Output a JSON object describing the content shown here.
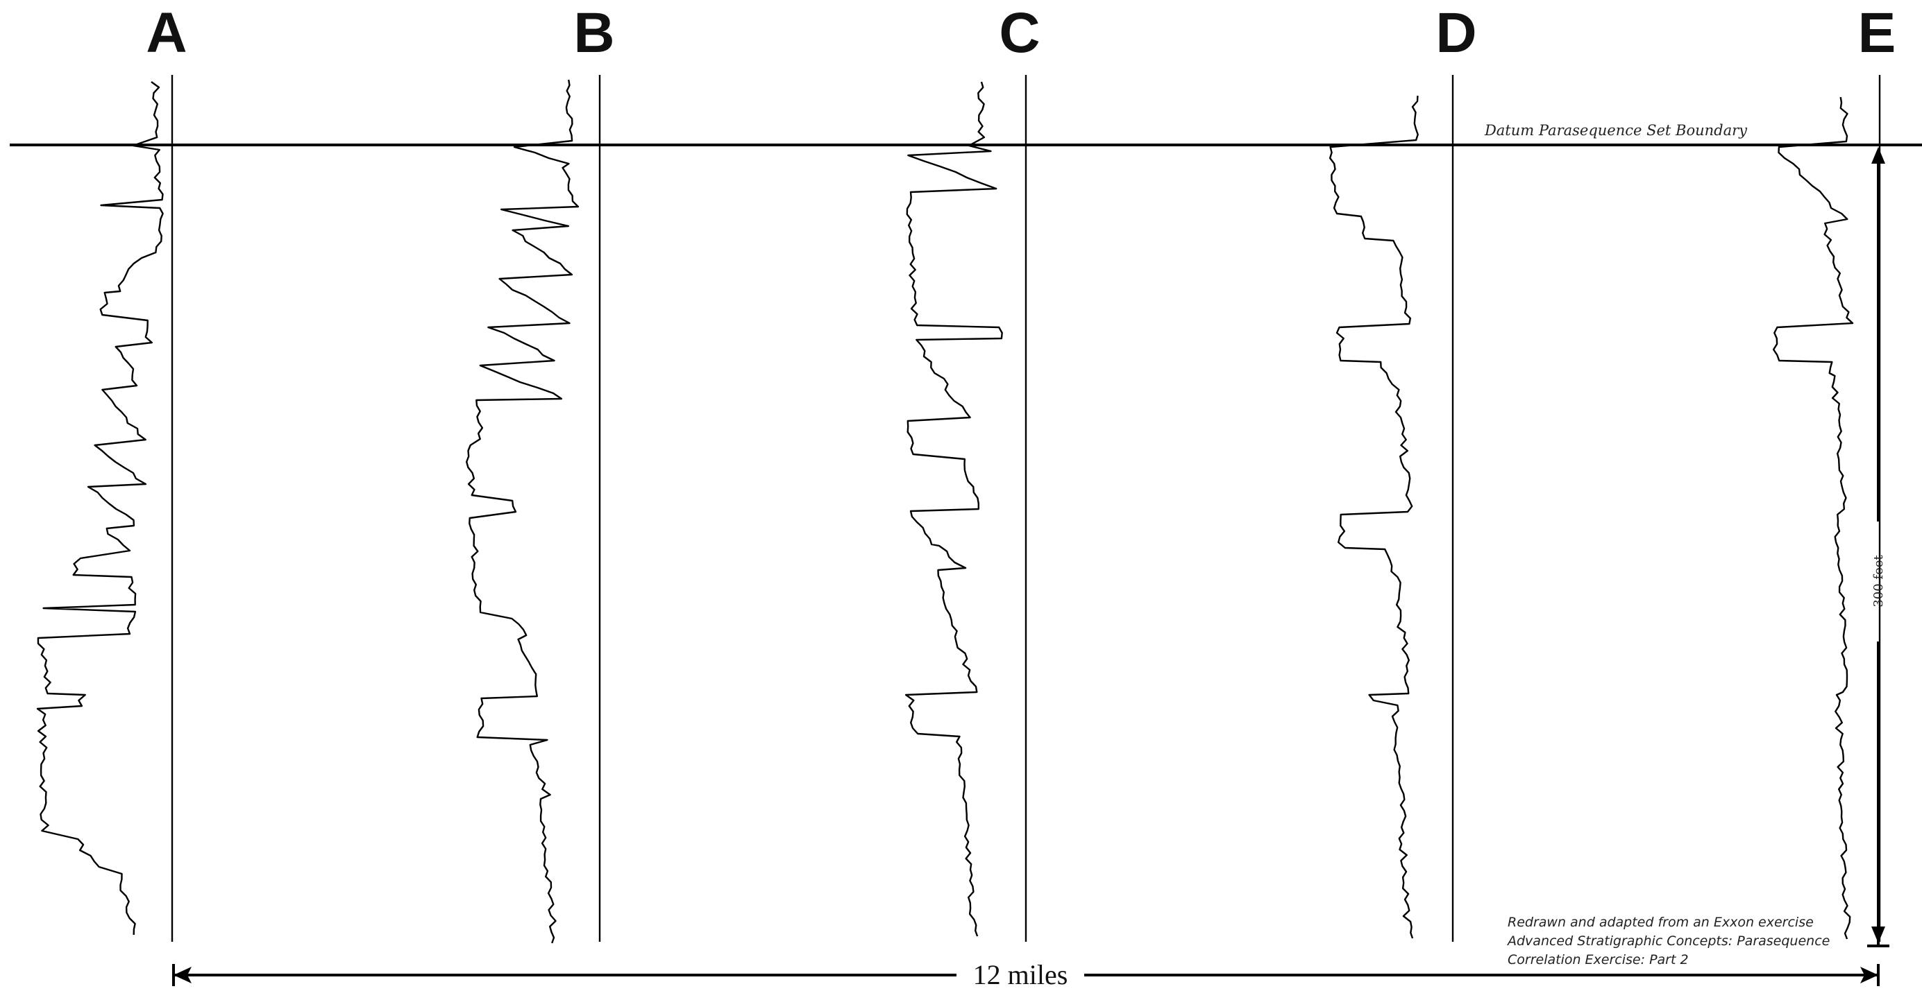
{
  "diagram": {
    "wells": [
      {
        "letter": "A"
      },
      {
        "letter": "B"
      },
      {
        "letter": "C"
      },
      {
        "letter": "D"
      },
      {
        "letter": "E"
      }
    ],
    "datum_label": "Datum Parasequence Set Boundary",
    "horizontal_scale_label": "12 miles",
    "vertical_scale_label": "300 feet",
    "credit_lines": [
      "Redrawn and adapted from an Exxon exercise",
      "Advanced Stratigraphic Concepts: Parasequence",
      "Correlation Exercise: Part 2"
    ],
    "colors": {
      "ink": "#000000",
      "background": "#ffffff"
    }
  }
}
